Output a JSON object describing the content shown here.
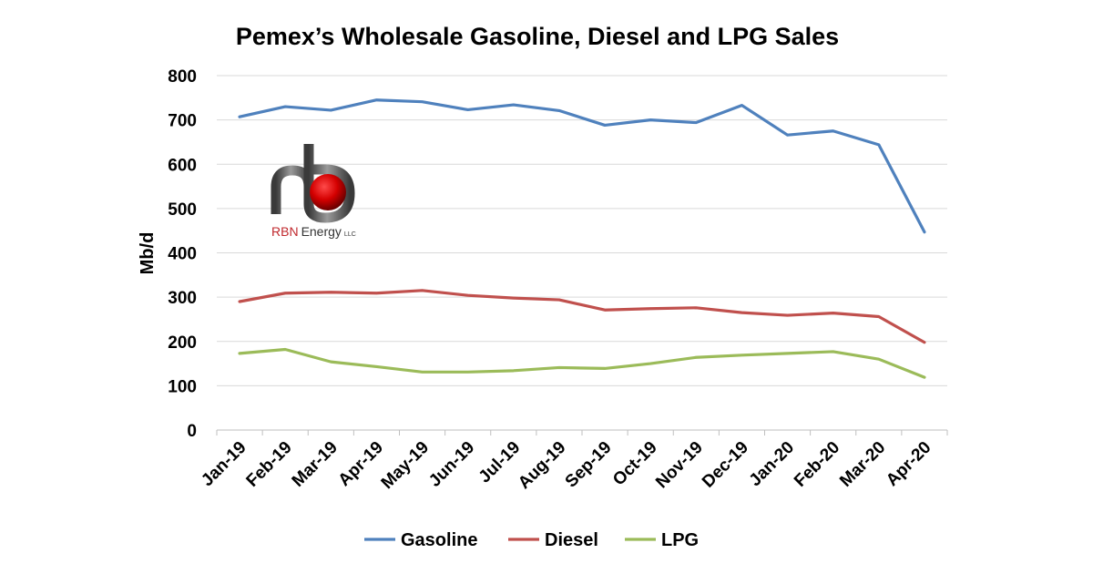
{
  "chart_data": {
    "type": "line",
    "title": "Pemex’s Wholesale Gasoline, Diesel and LPG Sales",
    "xlabel": "",
    "ylabel": "Mb/d",
    "ylim": [
      0,
      800
    ],
    "yticks": [
      0,
      100,
      200,
      300,
      400,
      500,
      600,
      700,
      800
    ],
    "grid": true,
    "legend": "bottom",
    "categories": [
      "Jan-19",
      "Feb-19",
      "Mar-19",
      "Apr-19",
      "May-19",
      "Jun-19",
      "Jul-19",
      "Aug-19",
      "Sep-19",
      "Oct-19",
      "Nov-19",
      "Dec-19",
      "Jan-20",
      "Feb-20",
      "Mar-20",
      "Apr-20"
    ],
    "series": [
      {
        "name": "Gasoline",
        "color": "#4f81bd",
        "values": [
          707,
          730,
          722,
          745,
          741,
          723,
          734,
          721,
          688,
          700,
          694,
          733,
          666,
          675,
          644,
          447
        ]
      },
      {
        "name": "Diesel",
        "color": "#c0504d",
        "values": [
          290,
          309,
          311,
          309,
          315,
          304,
          298,
          294,
          271,
          274,
          276,
          265,
          259,
          264,
          256,
          198
        ]
      },
      {
        "name": "LPG",
        "color": "#9bbb59",
        "values": [
          173,
          182,
          154,
          143,
          131,
          131,
          134,
          141,
          139,
          150,
          164,
          169,
          173,
          177,
          160,
          119
        ]
      }
    ]
  },
  "logo": {
    "brand_red": "RBN",
    "brand_dark": "Energy",
    "suffix": "LLC"
  }
}
